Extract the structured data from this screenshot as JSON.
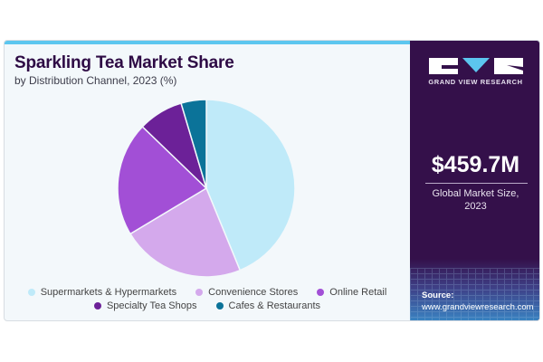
{
  "header": {
    "title": "Sparkling Tea Market Share",
    "subtitle": "by Distribution Channel, 2023 (%)"
  },
  "chart_data": {
    "type": "pie",
    "title": "Sparkling Tea Market Share",
    "subtitle": "by Distribution Channel, 2023 (%)",
    "categories": [
      "Supermarkets & Hypermarkets",
      "Convenience Stores",
      "Online Retail",
      "Specialty Tea Shops",
      "Cafes & Restaurants"
    ],
    "values": [
      43.8,
      22.6,
      20.8,
      8.2,
      4.6
    ],
    "colors": [
      "#bfeaf9",
      "#d4a9ec",
      "#a24fd6",
      "#6c2198",
      "#0b7399"
    ],
    "start_angle": "12 o'clock, clockwise",
    "legend_position": "bottom"
  },
  "panel": {
    "brand": "GRAND VIEW RESEARCH",
    "market_size": "$459.7M",
    "caption_line1": "Global Market Size,",
    "caption_line2": "2023",
    "source_label": "Source:",
    "source_url": "www.grandviewresearch.com",
    "background": "#34104a"
  }
}
